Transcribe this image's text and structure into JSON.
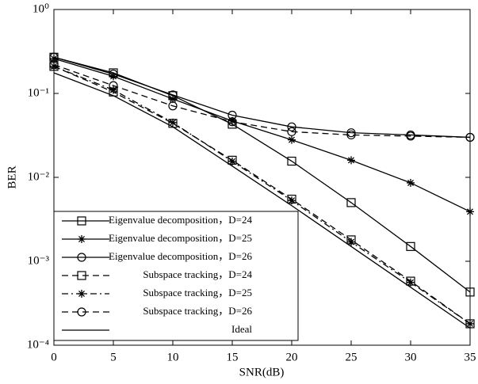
{
  "chart_data": {
    "type": "line",
    "x_label": "SNR(dB)",
    "y_label": "BER",
    "x": [
      0,
      5,
      10,
      15,
      20,
      25,
      30,
      35
    ],
    "xlim": [
      0,
      35
    ],
    "xticks": [
      0,
      5,
      10,
      15,
      20,
      25,
      30,
      35
    ],
    "ylim": [
      0.0001,
      1
    ],
    "log_y": true,
    "yticks": [
      {
        "value": 1,
        "label": "10⁰"
      },
      {
        "value": 0.1,
        "label": "10⁻¹"
      },
      {
        "value": 0.01,
        "label": "10⁻²"
      },
      {
        "value": 0.001,
        "label": "10⁻³"
      },
      {
        "value": 0.0001,
        "label": "10⁻⁴"
      }
    ],
    "legend": "lower left",
    "series": [
      {
        "name": "Eigenvalue decomposition，D=24",
        "color": "#000000",
        "dash": "solid",
        "marker": "square",
        "values": [
          0.27,
          0.176,
          0.094,
          0.043,
          0.0156,
          0.005,
          0.0015,
          0.00043
        ]
      },
      {
        "name": "Eigenvalue decomposition，D=25",
        "color": "#000000",
        "dash": "solid",
        "marker": "star",
        "values": [
          0.26,
          0.16,
          0.086,
          0.047,
          0.028,
          0.016,
          0.0086,
          0.0039
        ]
      },
      {
        "name": "Eigenvalue decomposition，D=26",
        "color": "#000000",
        "dash": "solid",
        "marker": "circle",
        "values": [
          0.27,
          0.17,
          0.096,
          0.055,
          0.04,
          0.034,
          0.032,
          0.03
        ]
      },
      {
        "name": "Subspace tracking，D=24",
        "color": "#000000",
        "dash": "dashed",
        "marker": "square",
        "values": [
          0.21,
          0.104,
          0.044,
          0.016,
          0.0055,
          0.0018,
          0.00058,
          0.00018
        ]
      },
      {
        "name": "Subspace tracking，D=25",
        "color": "#000000",
        "dash": "dashdot",
        "marker": "star",
        "values": [
          0.21,
          0.11,
          0.045,
          0.0155,
          0.0053,
          0.0017,
          0.00056,
          0.00018
        ]
      },
      {
        "name": "Subspace tracking，D=26",
        "color": "#000000",
        "dash": "dashed",
        "marker": "circle",
        "values": [
          0.22,
          0.124,
          0.071,
          0.046,
          0.035,
          0.032,
          0.031,
          0.03
        ]
      },
      {
        "name": "Ideal",
        "color": "#000000",
        "dash": "solid",
        "values": [
          0.176,
          0.094,
          0.04,
          0.0136,
          0.0046,
          0.0015,
          0.00049,
          0.00016
        ]
      }
    ]
  }
}
